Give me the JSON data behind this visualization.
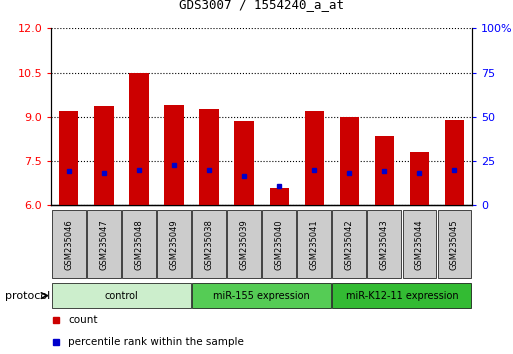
{
  "title": "GDS3007 / 1554240_a_at",
  "samples": [
    "GSM235046",
    "GSM235047",
    "GSM235048",
    "GSM235049",
    "GSM235038",
    "GSM235039",
    "GSM235040",
    "GSM235041",
    "GSM235042",
    "GSM235043",
    "GSM235044",
    "GSM235045"
  ],
  "red_values": [
    9.2,
    9.35,
    10.5,
    9.4,
    9.25,
    8.85,
    6.6,
    9.2,
    9.0,
    8.35,
    7.8,
    8.9
  ],
  "blue_values": [
    7.15,
    7.1,
    7.2,
    7.35,
    7.2,
    7.0,
    6.65,
    7.2,
    7.1,
    7.15,
    7.1,
    7.2
  ],
  "ylim_left": [
    6,
    12
  ],
  "ylim_right": [
    0,
    100
  ],
  "yticks_left": [
    6,
    7.5,
    9,
    10.5,
    12
  ],
  "yticks_right": [
    0,
    25,
    50,
    75,
    100
  ],
  "bar_color": "#cc0000",
  "dot_color": "#0000cc",
  "groups": [
    {
      "label": "control",
      "start": 0,
      "end": 4,
      "color": "#cceecc"
    },
    {
      "label": "miR-155 expression",
      "start": 4,
      "end": 8,
      "color": "#55cc55"
    },
    {
      "label": "miR-K12-11 expression",
      "start": 8,
      "end": 12,
      "color": "#33bb33"
    }
  ],
  "protocol_label": "protocol",
  "legend_count": "count",
  "legend_percentile": "percentile rank within the sample",
  "bar_width": 0.55,
  "base_value": 6,
  "sample_box_color": "#cccccc",
  "fig_width": 5.13,
  "fig_height": 3.54,
  "dpi": 100
}
